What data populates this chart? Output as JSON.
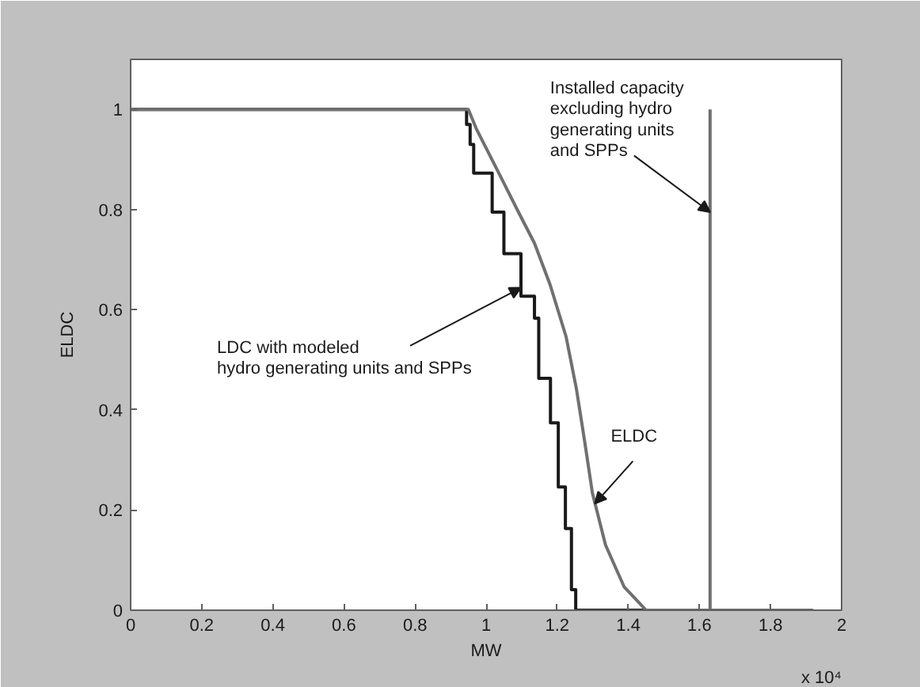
{
  "chart_data": {
    "type": "line",
    "xlabel": "MW",
    "ylabel": "ELDC",
    "xlim": [
      0,
      2
    ],
    "ylim": [
      0,
      1.1
    ],
    "xticks": [
      0,
      0.2,
      0.4,
      0.6,
      0.8,
      1,
      1.2,
      1.4,
      1.6,
      1.8,
      2
    ],
    "yticks": [
      0,
      0.2,
      0.4,
      0.6,
      0.8,
      1
    ],
    "grid": false,
    "marker": "none",
    "line_style": "solid",
    "series": [
      {
        "type": "step",
        "color": "#1a1a1a",
        "x": [
          0,
          0.945,
          0.955,
          0.965,
          1.017,
          1.05,
          1.098,
          1.136,
          1.148,
          1.181,
          1.203,
          1.223,
          1.24,
          1.252,
          1.92
        ],
        "values": [
          1,
          0.97,
          0.93,
          0.873,
          0.795,
          0.712,
          0.627,
          0.583,
          0.463,
          0.374,
          0.246,
          0.163,
          0.041,
          0,
          0
        ]
      },
      {
        "color": "#707070",
        "x": [
          0,
          0.95,
          0.972,
          1.032,
          1.091,
          1.136,
          1.18,
          1.225,
          1.254,
          1.277,
          1.299,
          1.336,
          1.388,
          1.45,
          1.92
        ],
        "values": [
          1,
          1,
          0.962,
          0.878,
          0.795,
          0.733,
          0.65,
          0.546,
          0.442,
          0.338,
          0.234,
          0.13,
          0.047,
          0,
          0
        ]
      },
      {
        "color": "#707070",
        "x": [
          1.63,
          1.63
        ],
        "values": [
          0,
          1
        ]
      }
    ],
    "annotations": [
      {
        "text": "Installed capacity\nexcluding hydro\ngenerating units\nand SPPs",
        "x": 1.63,
        "y": 0.795
      },
      {
        "text": "LDC with modeled\nhydro generating units and SPPs",
        "x": 1.098,
        "y": 0.644
      },
      {
        "text": "ELDC",
        "x": 1.306,
        "y": 0.213
      },
      "x 10⁴"
    ]
  }
}
